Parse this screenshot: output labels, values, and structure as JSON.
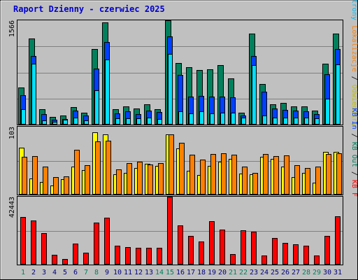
{
  "title": "Raport Dzienny -  czerwiec 2025",
  "colors": {
    "title": "#0000cc",
    "background": "#c0c0c0",
    "grid": "#808080",
    "hits": "#00805c",
    "files": "#0040ff",
    "pages": "#00e0ff",
    "visits": "#ffff00",
    "sites": "#ff8000",
    "kbytes": "#ff0000",
    "weekend_label": "#00805c",
    "weekday_label": "#000080"
  },
  "right_legend": {
    "top": [
      {
        "text": "Wywołania",
        "color": "#00805c"
      },
      {
        "text": "Pliki",
        "color": "#0040ff"
      },
      {
        "text": "Strony",
        "color": "#00c0ff"
      }
    ],
    "middle": [
      {
        "text": "Lokalizacje",
        "color": "#ff8000"
      },
      {
        "text": "Odwiedziny",
        "color": "#c0c000"
      }
    ],
    "bottom": [
      {
        "text": "KB In",
        "color": "#0040ff"
      },
      {
        "text": "KB Out",
        "color": "#00805c"
      },
      {
        "text": "KB F",
        "color": "#ff0000"
      }
    ]
  },
  "chart_data": [
    {
      "type": "bar",
      "panel": "hits-files-pages",
      "categories": [
        "1",
        "2",
        "3",
        "4",
        "5",
        "6",
        "7",
        "8",
        "9",
        "10",
        "11",
        "12",
        "13",
        "14",
        "15",
        "16",
        "17",
        "18",
        "19",
        "20",
        "21",
        "22",
        "23",
        "24",
        "25",
        "26",
        "27",
        "28",
        "29",
        "30",
        "31"
      ],
      "ymax_label": "1566",
      "ylim": [
        0,
        1566
      ],
      "series": [
        {
          "name": "Wywołania",
          "values": [
            560,
            1290,
            230,
            120,
            140,
            260,
            180,
            1130,
            1530,
            230,
            270,
            240,
            300,
            230,
            1570,
            920,
            860,
            820,
            830,
            890,
            690,
            180,
            1370,
            610,
            310,
            330,
            270,
            270,
            210,
            910,
            1370
          ]
        },
        {
          "name": "Pliki",
          "values": [
            440,
            1030,
            160,
            70,
            80,
            210,
            140,
            840,
            1240,
            170,
            200,
            160,
            210,
            190,
            1320,
            750,
            420,
            430,
            420,
            420,
            410,
            140,
            1030,
            490,
            240,
            220,
            210,
            200,
            160,
            760,
            1140
          ]
        },
        {
          "name": "Strony",
          "values": [
            230,
            910,
            60,
            40,
            70,
            100,
            60,
            510,
            980,
            90,
            90,
            90,
            100,
            80,
            1060,
            200,
            170,
            200,
            170,
            180,
            180,
            100,
            890,
            140,
            110,
            110,
            100,
            100,
            90,
            390,
            900
          ]
        }
      ]
    },
    {
      "type": "bar",
      "panel": "visits-sites",
      "categories": [
        "1",
        "2",
        "3",
        "4",
        "5",
        "6",
        "7",
        "8",
        "9",
        "10",
        "11",
        "12",
        "13",
        "14",
        "15",
        "16",
        "17",
        "18",
        "19",
        "20",
        "21",
        "22",
        "23",
        "24",
        "25",
        "26",
        "27",
        "28",
        "29",
        "30",
        "31"
      ],
      "ymax_label": "103",
      "ylim": [
        0,
        103
      ],
      "series": [
        {
          "name": "Odwiedziny",
          "values": [
            71,
            24,
            19,
            14,
            23,
            43,
            37,
            95,
            91,
            31,
            33,
            40,
            47,
            44,
            91,
            70,
            36,
            30,
            44,
            50,
            54,
            32,
            31,
            57,
            54,
            43,
            27,
            33,
            18,
            65,
            65
          ]
        },
        {
          "name": "Lokalizacje",
          "values": [
            57,
            58,
            42,
            27,
            28,
            68,
            45,
            81,
            82,
            38,
            48,
            50,
            46,
            48,
            91,
            79,
            60,
            53,
            62,
            63,
            61,
            43,
            33,
            62,
            58,
            59,
            45,
            40,
            42,
            62,
            63
          ]
        }
      ]
    },
    {
      "type": "bar",
      "panel": "kbytes",
      "categories": [
        "1",
        "2",
        "3",
        "4",
        "5",
        "6",
        "7",
        "8",
        "9",
        "10",
        "11",
        "12",
        "13",
        "14",
        "15",
        "16",
        "17",
        "18",
        "19",
        "20",
        "21",
        "22",
        "23",
        "24",
        "25",
        "26",
        "27",
        "28",
        "29",
        "30",
        "31"
      ],
      "ymax_label": "42443",
      "ylim": [
        0,
        42443
      ],
      "series": [
        {
          "name": "KB F",
          "values": [
            29700,
            27700,
            19800,
            6000,
            3500,
            13300,
            7600,
            26400,
            29200,
            11600,
            11000,
            10400,
            10300,
            10500,
            42400,
            24500,
            18100,
            14400,
            27300,
            21900,
            6500,
            21300,
            20500,
            5800,
            16800,
            13500,
            12800,
            11700,
            5500,
            17900,
            30200
          ]
        }
      ]
    }
  ],
  "day_label_colors": [
    "#00805c",
    "#000080",
    "#000080",
    "#000080",
    "#000080",
    "#000080",
    "#00805c",
    "#00805c",
    "#000080",
    "#000080",
    "#000080",
    "#000080",
    "#000080",
    "#00805c",
    "#00805c",
    "#000080",
    "#000080",
    "#000080",
    "#000080",
    "#000080",
    "#00805c",
    "#00805c",
    "#000080",
    "#000080",
    "#000080",
    "#000080",
    "#000080",
    "#00805c",
    "#00805c",
    "#000080",
    "#000080"
  ]
}
